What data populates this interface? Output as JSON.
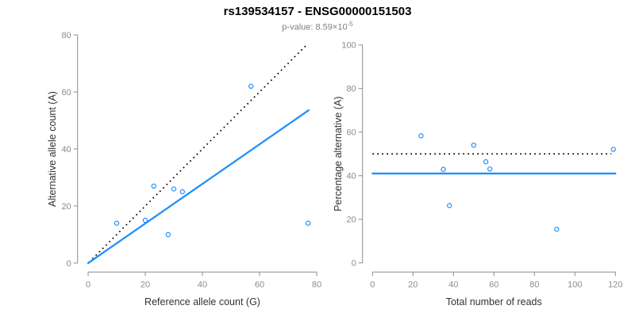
{
  "header": {
    "title": "rs139534157 - ENSG00000151503",
    "subtitle_base": "p-value: 8.59×10",
    "subtitle_exponent": "-5"
  },
  "colors": {
    "point": "#1E90FF",
    "fit_line": "#1E90FF",
    "reference_line": "#000000",
    "axis": "#8c8c8c",
    "tick_label": "#8c8c8c",
    "axis_title": "#333333",
    "subtitle": "#7f7f7f"
  },
  "chart_data": [
    {
      "type": "scatter",
      "title": "rs139534157 - ENSG00000151503",
      "subtitle": "p-value: 8.59e-5",
      "xlabel": "Reference allele count (G)",
      "ylabel": "Alternative allele count (A)",
      "xlim": [
        0,
        80
      ],
      "ylim": [
        0,
        80
      ],
      "xticks": [
        0,
        20,
        40,
        60,
        80
      ],
      "yticks": [
        0,
        20,
        40,
        60,
        80
      ],
      "grid": false,
      "legend": null,
      "points": [
        [
          10,
          14
        ],
        [
          20,
          15
        ],
        [
          23,
          27
        ],
        [
          28,
          10
        ],
        [
          30,
          26
        ],
        [
          33,
          25
        ],
        [
          57,
          62
        ],
        [
          77,
          14
        ]
      ],
      "lines": [
        {
          "label": "identity y=x",
          "style": "dotted",
          "color": "#000000",
          "from": [
            1.5,
            1.5
          ],
          "to": [
            76.6,
            76.6
          ]
        },
        {
          "label": "fit slope 0.694",
          "style": "solid",
          "color": "#1E90FF",
          "from": [
            0,
            0
          ],
          "to": [
            77.2,
            53.6
          ]
        }
      ]
    },
    {
      "type": "scatter",
      "xlabel": "Total number of reads",
      "ylabel": "Percentage alternative (A)",
      "xlim": [
        0,
        120
      ],
      "ylim": [
        0,
        100
      ],
      "xticks": [
        0,
        20,
        40,
        60,
        80,
        100,
        120
      ],
      "yticks": [
        0,
        20,
        40,
        60,
        80,
        100
      ],
      "grid": false,
      "legend": null,
      "points": [
        [
          24,
          58.3
        ],
        [
          35,
          42.9
        ],
        [
          50,
          54.0
        ],
        [
          38,
          26.3
        ],
        [
          56,
          46.4
        ],
        [
          58,
          43.1
        ],
        [
          119,
          52.1
        ],
        [
          91,
          15.4
        ]
      ],
      "lines": [
        {
          "label": "expected 50%",
          "style": "dotted",
          "color": "#000000",
          "from": [
            0,
            50
          ],
          "to": [
            118,
            50
          ]
        },
        {
          "label": "observed 41%",
          "style": "solid",
          "color": "#1E90FF",
          "from": [
            0,
            41
          ],
          "to": [
            120,
            41
          ]
        }
      ]
    }
  ]
}
